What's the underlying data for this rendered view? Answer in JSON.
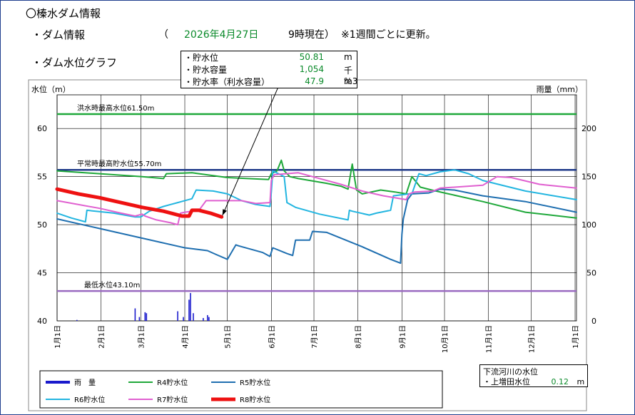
{
  "header": {
    "title": "〇榛水ダム情報",
    "dam_info_label": "・ダム情報",
    "date_open": "（",
    "date_value": "2026年4月27日",
    "time_text": "9時現在）",
    "update_note": "※1週間ごとに更新。",
    "graph_label": "・ダム水位グラフ"
  },
  "info_box": {
    "rows": [
      {
        "label": "・貯水位",
        "value": "50.81",
        "unit": "m"
      },
      {
        "label": "・貯水容量",
        "value": "1,054",
        "unit": "千m3"
      },
      {
        "label": "・貯水率（利水容量）",
        "value": "47.9",
        "unit": "%"
      }
    ]
  },
  "river_box": {
    "title": "下流河川の水位",
    "label": "・上増田水位",
    "value": "0.12",
    "unit": "m"
  },
  "colors": {
    "rain": "#1a1acc",
    "r4": "#1fa83a",
    "r5": "#1f6fb0",
    "r6": "#22b5e0",
    "r7": "#e060d0",
    "r8": "#ee1111",
    "flood": "#1fa83a",
    "normal": "#1f3a8a",
    "low": "#9a6ac0"
  },
  "chart_data": {
    "type": "line",
    "ylabel": "水位（m）",
    "y2label": "雨量（mm）",
    "ylim": [
      40,
      63.5
    ],
    "y2lim": [
      0,
      235
    ],
    "yticks": [
      40,
      45,
      50,
      55,
      60
    ],
    "y2ticks": [
      0,
      50,
      100,
      150,
      200
    ],
    "xlim": [
      0,
      366
    ],
    "x_ticks": [
      {
        "day": 0,
        "label": "1月1日"
      },
      {
        "day": 31,
        "label": "2月1日"
      },
      {
        "day": 59,
        "label": "3月1日"
      },
      {
        "day": 90,
        "label": "4月1日"
      },
      {
        "day": 120,
        "label": "5月1日"
      },
      {
        "day": 151,
        "label": "6月1日"
      },
      {
        "day": 181,
        "label": "7月1日"
      },
      {
        "day": 212,
        "label": "8月1日"
      },
      {
        "day": 243,
        "label": "9月1日"
      },
      {
        "day": 273,
        "label": "10月1日"
      },
      {
        "day": 304,
        "label": "11月1日"
      },
      {
        "day": 334,
        "label": "12月1日"
      },
      {
        "day": 365,
        "label": "1月1日"
      }
    ],
    "ref_lines": [
      {
        "key": "flood",
        "y": 61.5,
        "label": "洪水時最高水位61.50m"
      },
      {
        "key": "normal",
        "y": 55.7,
        "label": "平常時最高貯水位55.70m"
      },
      {
        "key": "low",
        "y": 43.1,
        "label": "最低水位43.10m"
      }
    ],
    "rain": {
      "name": "雨　量",
      "points": [
        [
          14,
          1
        ],
        [
          55,
          13
        ],
        [
          58,
          4
        ],
        [
          62,
          9
        ],
        [
          63,
          8
        ],
        [
          85,
          10
        ],
        [
          89,
          4
        ],
        [
          93,
          22
        ],
        [
          94,
          29
        ],
        [
          96,
          8
        ],
        [
          103,
          3
        ],
        [
          106,
          6
        ],
        [
          107,
          4
        ]
      ]
    },
    "series": [
      {
        "name": "R4貯水位",
        "key": "r4",
        "width": 2,
        "points": [
          [
            0,
            55.6
          ],
          [
            30,
            55.3
          ],
          [
            60,
            55.0
          ],
          [
            75,
            54.8
          ],
          [
            77,
            55.3
          ],
          [
            95,
            55.4
          ],
          [
            120,
            54.9
          ],
          [
            149,
            54.7
          ],
          [
            151,
            55.3
          ],
          [
            155,
            55.6
          ],
          [
            158,
            56.7
          ],
          [
            160,
            55.6
          ],
          [
            164,
            55.0
          ],
          [
            170,
            54.8
          ],
          [
            190,
            54.3
          ],
          [
            200,
            54.0
          ],
          [
            205,
            53.7
          ],
          [
            208,
            56.3
          ],
          [
            211,
            53.6
          ],
          [
            215,
            53.2
          ],
          [
            228,
            53.6
          ],
          [
            238,
            53.4
          ],
          [
            246,
            53.2
          ],
          [
            250,
            55.0
          ],
          [
            256,
            53.9
          ],
          [
            264,
            53.6
          ],
          [
            273,
            53.3
          ],
          [
            300,
            52.4
          ],
          [
            330,
            51.3
          ],
          [
            366,
            50.7
          ]
        ]
      },
      {
        "name": "R5貯水位",
        "key": "r5",
        "width": 2,
        "points": [
          [
            0,
            50.6
          ],
          [
            30,
            49.6
          ],
          [
            60,
            48.6
          ],
          [
            90,
            47.6
          ],
          [
            106,
            47.3
          ],
          [
            112,
            46.9
          ],
          [
            120,
            46.4
          ],
          [
            126,
            47.9
          ],
          [
            128,
            47.8
          ],
          [
            145,
            47.1
          ],
          [
            150,
            46.7
          ],
          [
            152,
            47.6
          ],
          [
            162,
            47.0
          ],
          [
            166,
            46.8
          ],
          [
            168,
            48.4
          ],
          [
            178,
            48.4
          ],
          [
            180,
            49.3
          ],
          [
            190,
            49.2
          ],
          [
            215,
            47.7
          ],
          [
            235,
            46.4
          ],
          [
            242,
            46.0
          ],
          [
            243,
            49.0
          ],
          [
            244,
            50.6
          ],
          [
            247,
            52.6
          ],
          [
            250,
            53.2
          ],
          [
            262,
            53.3
          ],
          [
            270,
            53.7
          ],
          [
            280,
            53.6
          ],
          [
            300,
            53.0
          ],
          [
            330,
            52.4
          ],
          [
            366,
            51.3
          ]
        ]
      },
      {
        "name": "R6貯水位",
        "key": "r6",
        "width": 2,
        "points": [
          [
            0,
            51.2
          ],
          [
            10,
            50.7
          ],
          [
            20,
            50.3
          ],
          [
            21,
            51.5
          ],
          [
            40,
            51.2
          ],
          [
            55,
            50.8
          ],
          [
            59,
            50.8
          ],
          [
            65,
            51.4
          ],
          [
            75,
            51.9
          ],
          [
            80,
            52.1
          ],
          [
            85,
            52.3
          ],
          [
            95,
            52.7
          ],
          [
            98,
            53.6
          ],
          [
            110,
            53.5
          ],
          [
            120,
            53.2
          ],
          [
            130,
            52.5
          ],
          [
            140,
            52.1
          ],
          [
            150,
            51.9
          ],
          [
            151,
            53.4
          ],
          [
            152,
            55.6
          ],
          [
            160,
            55.0
          ],
          [
            162,
            52.3
          ],
          [
            168,
            51.8
          ],
          [
            185,
            51.1
          ],
          [
            205,
            50.5
          ],
          [
            206,
            51.5
          ],
          [
            208,
            51.4
          ],
          [
            220,
            51.0
          ],
          [
            225,
            51.2
          ],
          [
            235,
            51.5
          ],
          [
            237,
            53.0
          ],
          [
            248,
            53.2
          ],
          [
            250,
            53.2
          ],
          [
            255,
            55.3
          ],
          [
            260,
            55.1
          ],
          [
            270,
            55.5
          ],
          [
            280,
            55.7
          ],
          [
            290,
            55.3
          ],
          [
            300,
            54.6
          ],
          [
            330,
            53.5
          ],
          [
            366,
            52.6
          ]
        ]
      },
      {
        "name": "R7貯水位",
        "key": "r7",
        "width": 2,
        "points": [
          [
            0,
            52.5
          ],
          [
            30,
            51.7
          ],
          [
            45,
            51.2
          ],
          [
            55,
            50.9
          ],
          [
            60,
            51.1
          ],
          [
            62,
            50.9
          ],
          [
            70,
            50.5
          ],
          [
            80,
            50.2
          ],
          [
            85,
            50.0
          ],
          [
            87,
            51.2
          ],
          [
            90,
            51.3
          ],
          [
            100,
            51.5
          ],
          [
            103,
            52.1
          ],
          [
            105,
            52.5
          ],
          [
            130,
            52.5
          ],
          [
            140,
            52.2
          ],
          [
            150,
            52.3
          ],
          [
            151,
            54.6
          ],
          [
            153,
            55.2
          ],
          [
            170,
            55.4
          ],
          [
            200,
            54.2
          ],
          [
            215,
            53.5
          ],
          [
            230,
            53.0
          ],
          [
            246,
            52.6
          ],
          [
            248,
            53.2
          ],
          [
            252,
            53.4
          ],
          [
            265,
            53.5
          ],
          [
            270,
            53.8
          ],
          [
            300,
            54.1
          ],
          [
            310,
            55.0
          ],
          [
            320,
            54.9
          ],
          [
            340,
            54.2
          ],
          [
            366,
            53.8
          ]
        ]
      },
      {
        "name": "R8貯水位",
        "key": "r8",
        "width": 5,
        "points": [
          [
            0,
            53.7
          ],
          [
            15,
            53.2
          ],
          [
            30,
            52.8
          ],
          [
            45,
            52.3
          ],
          [
            60,
            51.8
          ],
          [
            75,
            51.4
          ],
          [
            88,
            50.9
          ],
          [
            93,
            50.9
          ],
          [
            95,
            51.5
          ],
          [
            100,
            51.5
          ],
          [
            108,
            51.2
          ],
          [
            116,
            50.81
          ]
        ]
      }
    ]
  },
  "legend": {
    "items": [
      {
        "key": "rain",
        "label": "雨　量",
        "width": 4
      },
      {
        "key": "r4",
        "label": "R4貯水位",
        "width": 2
      },
      {
        "key": "r5",
        "label": "R5貯水位",
        "width": 2
      },
      {
        "key": "r6",
        "label": "R6貯水位",
        "width": 2
      },
      {
        "key": "r7",
        "label": "R7貯水位",
        "width": 2
      },
      {
        "key": "r8",
        "label": "R8貯水位",
        "width": 5
      }
    ]
  }
}
